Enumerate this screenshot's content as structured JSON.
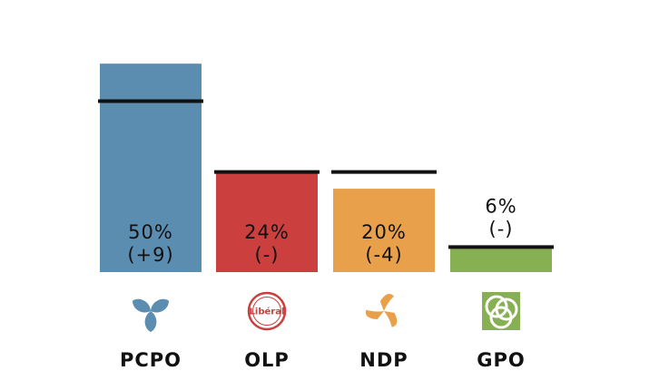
{
  "chart_data": {
    "type": "bar",
    "title": "",
    "xlabel": "",
    "ylabel": "",
    "ylim": [
      0,
      57
    ],
    "grid": false,
    "legend": "none",
    "categories": [
      "PCPO",
      "OLP",
      "NDP",
      "GPO"
    ],
    "series": [
      {
        "values": [
          50,
          24,
          20,
          6
        ],
        "value_labels": [
          "50%",
          "24%",
          "20%",
          "6%"
        ],
        "change_labels": [
          "(+9)",
          "(-)",
          "(-4)",
          "(-)"
        ]
      },
      {
        "type": "reference-line",
        "values": [
          41,
          24,
          24,
          6
        ]
      }
    ],
    "colors": [
      "#5b8db1",
      "#cb3f3f",
      "#e8a14a",
      "#86b052"
    ],
    "reference_line_color": "#111111",
    "icons": [
      "pcpo-trillium-icon",
      "liberal-logo-icon",
      "ndp-trillium-icon",
      "gpo-logo-icon"
    ]
  }
}
